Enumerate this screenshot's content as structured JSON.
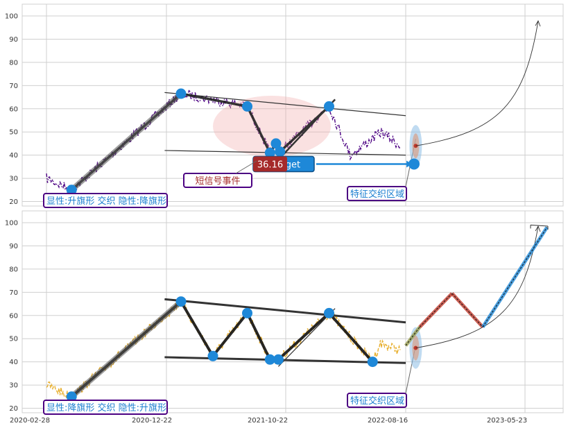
{
  "chart_data": [
    {
      "type": "line",
      "panel": "top",
      "ylim": [
        18,
        105
      ],
      "yticks": [
        20,
        30,
        40,
        50,
        60,
        70,
        80,
        90,
        100
      ],
      "grid": true,
      "series_color": "#4b0082",
      "series_style": "dash-dot",
      "pattern_points": [
        {
          "date": "2020-05-01",
          "value": 25
        },
        {
          "date": "2021-01-30",
          "value": 66.5
        },
        {
          "date": "2021-07-15",
          "value": 61
        },
        {
          "date": "2021-09-10",
          "value": 41
        },
        {
          "date": "2021-09-25",
          "value": 45
        },
        {
          "date": "2021-10-05",
          "value": 41.5
        },
        {
          "date": "2022-02-05",
          "value": 61
        }
      ],
      "trendlines": [
        {
          "from": {
            "date": "2020-12-20",
            "value": 67
          },
          "to": {
            "date": "2022-08-16",
            "value": 57
          }
        },
        {
          "from": {
            "date": "2020-12-20",
            "value": 42
          },
          "to": {
            "date": "2022-08-16",
            "value": 40
          }
        }
      ],
      "target_value": 36.16,
      "target_text": "36.16",
      "target_button": "Target",
      "annotations": {
        "short_signal": "短信号事件",
        "cross_zone": "特征交织区域",
        "pattern": "显性:升旗形 交织 隐性:降旗形"
      }
    },
    {
      "type": "line",
      "panel": "bottom",
      "ylim": [
        18,
        105
      ],
      "yticks": [
        20,
        30,
        40,
        50,
        60,
        70,
        80,
        90,
        100
      ],
      "grid": true,
      "series_color": "#e8b030",
      "series_style": "dash",
      "xticks": [
        "2020-02-28",
        "2020-12-22",
        "2021-10-22",
        "2022-08-16",
        "2023-05-23"
      ],
      "pattern_points": [
        {
          "date": "2020-05-01",
          "value": 25
        },
        {
          "date": "2021-01-30",
          "value": 66
        },
        {
          "date": "2021-04-20",
          "value": 42.5
        },
        {
          "date": "2021-07-15",
          "value": 61
        },
        {
          "date": "2021-09-10",
          "value": 41
        },
        {
          "date": "2021-10-01",
          "value": 41
        },
        {
          "date": "2022-02-05",
          "value": 61
        },
        {
          "date": "2022-05-25",
          "value": 40
        }
      ],
      "trendlines": [
        {
          "from": {
            "date": "2020-12-20",
            "value": 67
          },
          "to": {
            "date": "2022-08-16",
            "value": 57
          }
        },
        {
          "from": {
            "date": "2020-12-20",
            "value": 42
          },
          "to": {
            "date": "2022-08-16",
            "value": 39.5
          }
        }
      ],
      "forecast_path": [
        {
          "date": "2022-09-20",
          "value": 55
        },
        {
          "date": "2022-12-10",
          "value": 69.5
        },
        {
          "date": "2023-02-25",
          "value": 55
        },
        {
          "date": "2023-08-05",
          "value": 98
        }
      ],
      "annotations": {
        "cross_zone": "特征交织区域",
        "pattern": "显性:降旗形 交织 隐性:升旗形"
      }
    }
  ]
}
